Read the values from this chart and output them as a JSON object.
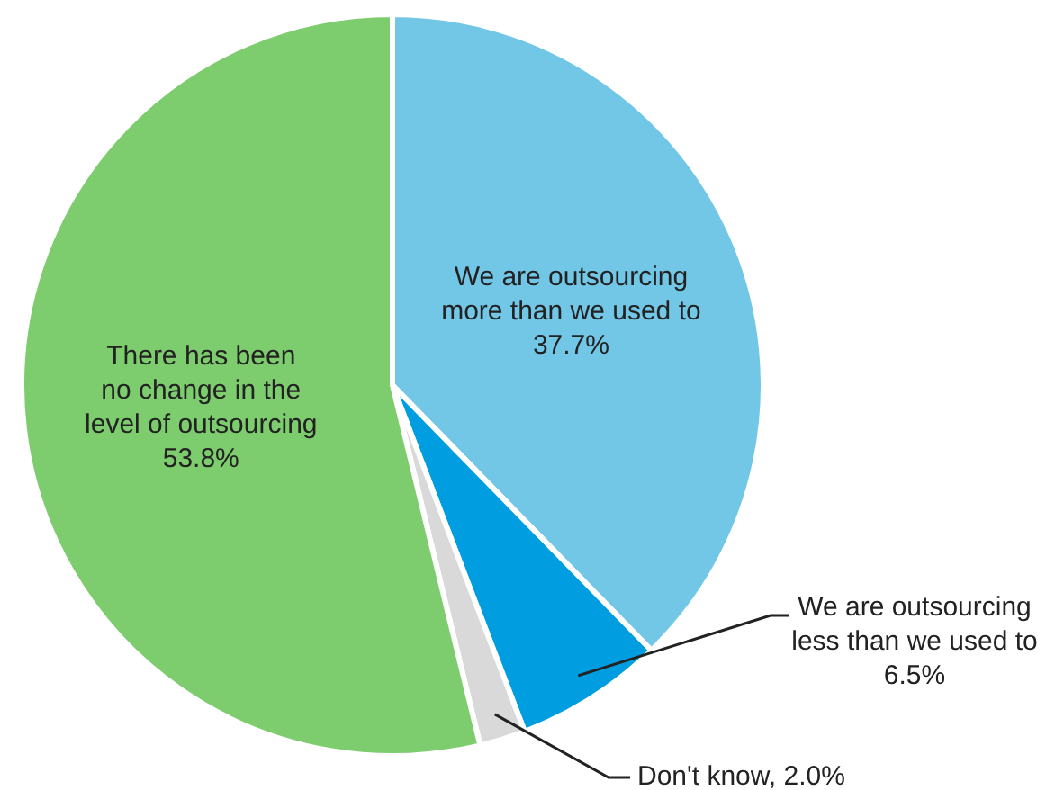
{
  "chart_data": {
    "type": "pie",
    "categories": [
      "We are outsourcing\nmore than we used to",
      "We are outsourcing\nless than we used to",
      "Don't know",
      "There has been\nno change in the\nlevel of outsourcing"
    ],
    "values": [
      37.7,
      6.5,
      2.0,
      53.8
    ],
    "value_labels": [
      "37.7%",
      "6.5%",
      "2.0%",
      "53.8%"
    ],
    "colors": [
      "#72c7e7",
      "#009ee0",
      "#d9d9d9",
      "#7dcd6e"
    ],
    "legend": false
  }
}
